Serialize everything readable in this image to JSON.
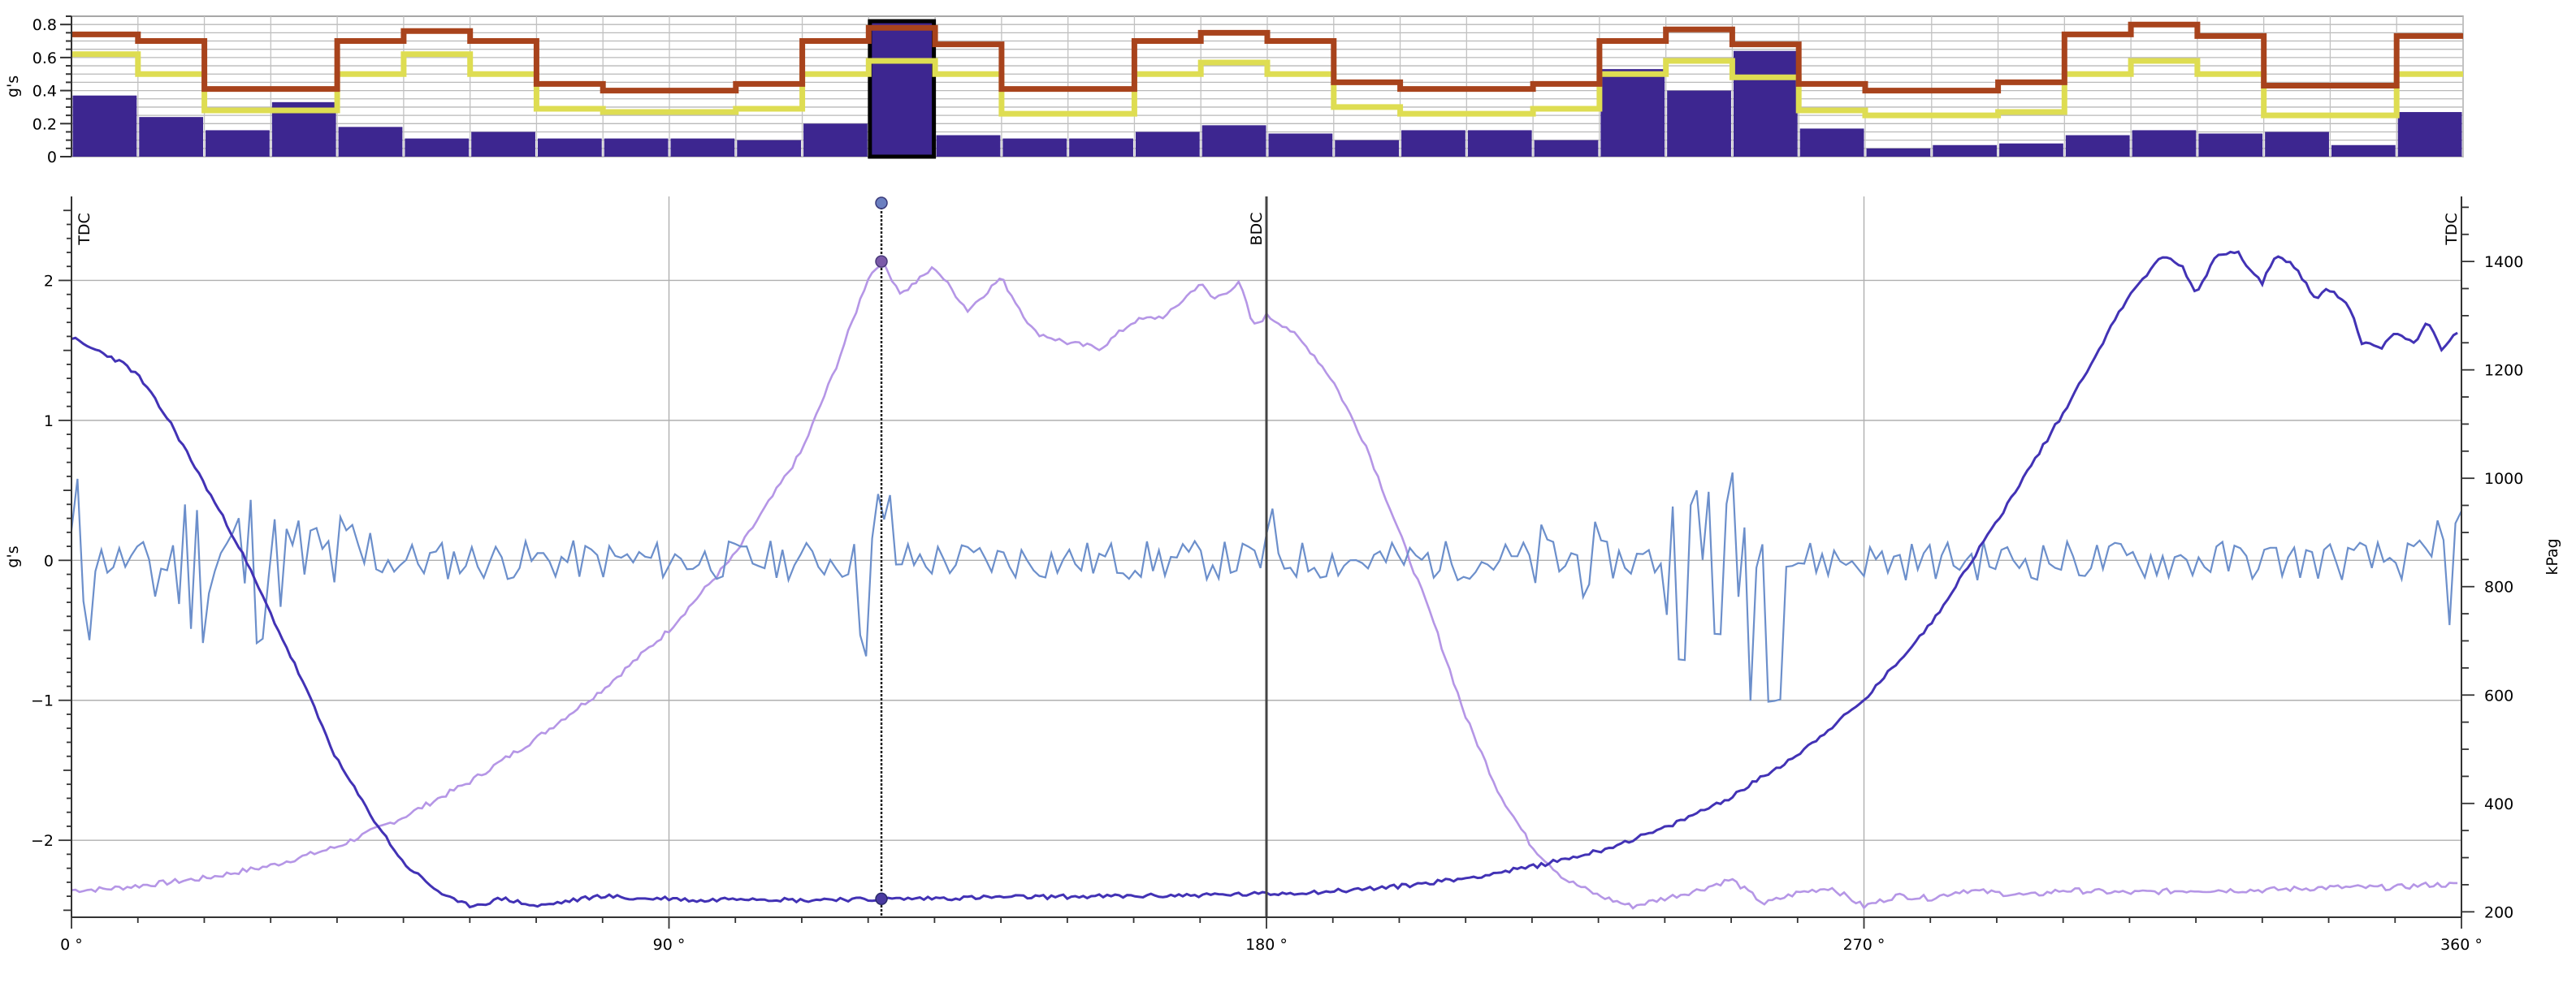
{
  "chart_data": [
    {
      "type": "bar",
      "name": "band-summary",
      "ylabel": "g's",
      "ylim": [
        0,
        0.85
      ],
      "y_ticks": [
        0,
        0.2,
        0.4,
        0.6,
        0.8
      ],
      "y_tick_labels": [
        "0",
        "0.2",
        "0.4",
        "0.6",
        "0.8"
      ],
      "grid": true,
      "selected_index": 12,
      "series": [
        {
          "kind": "bar",
          "values": [
            0.37,
            0.24,
            0.16,
            0.33,
            0.18,
            0.11,
            0.15,
            0.11,
            0.11,
            0.11,
            0.1,
            0.2,
            0.82,
            0.13,
            0.11,
            0.11,
            0.15,
            0.19,
            0.14,
            0.1,
            0.16,
            0.16,
            0.1,
            0.53,
            0.4,
            0.64,
            0.17,
            0.05,
            0.07,
            0.08,
            0.13,
            0.16,
            0.14,
            0.15,
            0.07,
            0.27
          ]
        },
        {
          "kind": "step",
          "values": [
            0.74,
            0.7,
            0.41,
            0.41,
            0.7,
            0.76,
            0.7,
            0.44,
            0.4,
            0.4,
            0.44,
            0.7,
            0.78,
            0.68,
            0.41,
            0.41,
            0.7,
            0.75,
            0.7,
            0.45,
            0.41,
            0.41,
            0.44,
            0.7,
            0.77,
            0.68,
            0.44,
            0.4,
            0.4,
            0.45,
            0.74,
            0.8,
            0.73,
            0.43,
            0.43,
            0.73
          ]
        },
        {
          "kind": "step",
          "values": [
            0.62,
            0.5,
            0.28,
            0.28,
            0.5,
            0.62,
            0.5,
            0.29,
            0.27,
            0.27,
            0.29,
            0.5,
            0.58,
            0.5,
            0.26,
            0.26,
            0.5,
            0.57,
            0.5,
            0.3,
            0.26,
            0.26,
            0.29,
            0.5,
            0.58,
            0.48,
            0.28,
            0.25,
            0.25,
            0.27,
            0.5,
            0.58,
            0.5,
            0.25,
            0.25,
            0.5
          ]
        }
      ],
      "colors": {
        "bar": "#3d2690",
        "bar_selected_outline": "#000000",
        "step_1": "#a8431c",
        "step_2": "#dedd52"
      }
    },
    {
      "type": "line",
      "name": "crank-angle-trace",
      "xlabel": "",
      "ylabel": "g's",
      "y2label": "kPag",
      "xlim": [
        0,
        360
      ],
      "ylim": [
        -2.55,
        2.6
      ],
      "y2lim": [
        190,
        1520
      ],
      "x_ticks": [
        0,
        90,
        180,
        270,
        360
      ],
      "x_tick_labels": [
        "0 °",
        "90 °",
        "180 °",
        "270 °",
        "360 °"
      ],
      "y_ticks": [
        -2,
        -1,
        0,
        1,
        2
      ],
      "y_tick_labels": [
        "−2",
        "−1",
        "0",
        "1",
        "2"
      ],
      "y2_ticks": [
        200,
        400,
        600,
        800,
        1000,
        1200,
        1400
      ],
      "y2_tick_labels": [
        "200",
        "400",
        "600",
        "800",
        "1000",
        "1200",
        "1400"
      ],
      "grid": true,
      "cursor_x": 122,
      "markers": [
        {
          "x": 0,
          "label": "TDC"
        },
        {
          "x": 180,
          "label": "BDC"
        },
        {
          "x": 360,
          "label": "TDC"
        }
      ],
      "series": [
        {
          "axis": "right",
          "x": [
            0,
            5,
            10,
            15,
            20,
            30,
            40,
            50,
            60,
            70,
            80,
            90,
            100,
            110,
            115,
            120,
            122,
            125,
            130,
            135,
            140,
            145,
            150,
            155,
            160,
            165,
            170,
            172,
            176,
            178,
            180,
            183,
            187,
            190,
            195,
            200,
            205,
            210,
            215,
            220,
            225,
            230,
            235,
            240,
            245,
            250,
            255,
            260,
            265,
            270,
            275,
            280,
            285,
            290,
            295,
            300,
            310,
            320,
            330,
            340,
            350,
            355,
            360
          ],
          "y": [
            240,
            242,
            248,
            255,
            262,
            285,
            320,
            375,
            440,
            520,
            610,
            720,
            860,
            1050,
            1200,
            1370,
            1400,
            1340,
            1390,
            1310,
            1370,
            1270,
            1250,
            1240,
            1290,
            1300,
            1360,
            1330,
            1360,
            1280,
            1300,
            1280,
            1230,
            1180,
            1060,
            900,
            740,
            560,
            420,
            320,
            260,
            230,
            210,
            225,
            240,
            260,
            215,
            235,
            245,
            210,
            230,
            225,
            240,
            235,
            230,
            240,
            235,
            240,
            240,
            245,
            245,
            250,
            250
          ]
        },
        {
          "axis": "right",
          "x": [
            0,
            2,
            5,
            8,
            10,
            12,
            15,
            20,
            25,
            30,
            35,
            40,
            45,
            50,
            55,
            58,
            60,
            62,
            65,
            70,
            75,
            80,
            85,
            90,
            95,
            100,
            105,
            110,
            115,
            120,
            125,
            130,
            140,
            150,
            160,
            170,
            180,
            190,
            200,
            210,
            220,
            230,
            240,
            250,
            260,
            270,
            280,
            290,
            300,
            310,
            315,
            318,
            320,
            323,
            326,
            328,
            330,
            332,
            335,
            338,
            340,
            343,
            345,
            348,
            350,
            353,
            355,
            357,
            360
          ],
          "y": [
            1260,
            1245,
            1230,
            1210,
            1190,
            1155,
            1100,
            990,
            880,
            750,
            620,
            480,
            380,
            290,
            240,
            218,
            212,
            215,
            225,
            210,
            220,
            230,
            224,
            225,
            220,
            226,
            224,
            221,
            224,
            222,
            224,
            225,
            227,
            228,
            229,
            231,
            233,
            238,
            247,
            262,
            283,
            312,
            354,
            412,
            490,
            590,
            730,
            920,
            1120,
            1340,
            1410,
            1390,
            1340,
            1410,
            1420,
            1390,
            1360,
            1410,
            1390,
            1330,
            1350,
            1320,
            1250,
            1240,
            1270,
            1250,
            1290,
            1240,
            1280
          ]
        },
        {
          "axis": "left",
          "noise": true,
          "x_start": 0,
          "x_end": 360
        }
      ],
      "colors": {
        "pressure_light": "#b596e6",
        "pressure_dark": "#4232b5",
        "accel": "#6c8fcb",
        "cursor": "#6b5aa8",
        "tdc_line": "#777777",
        "bdc_line": "#444444"
      }
    }
  ]
}
